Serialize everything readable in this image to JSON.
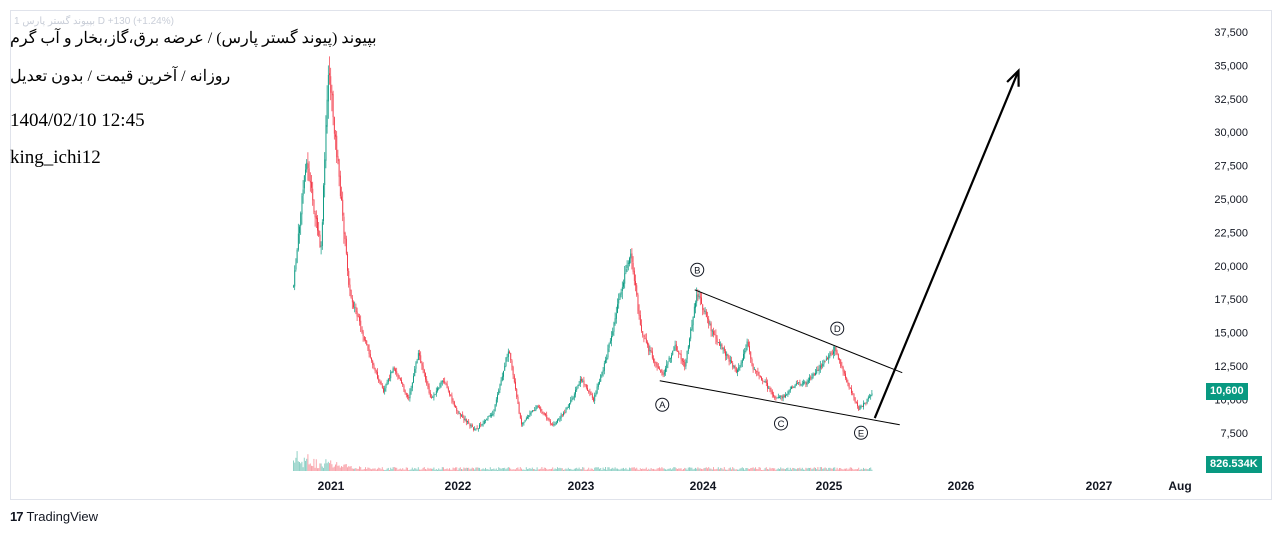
{
  "legend": {
    "title": "بپیوند (پیوند گستر پارس) / عرضه برق،گاز،بخار و آب گرم",
    "interval": "روزانه / آخرین قیمت / بدون تعدیل",
    "datetime": "1404/02/10 12:45",
    "author": "king_ichi12",
    "faint_text": "1 بپیوند گستر پارس D  +130 (+1.24%)"
  },
  "badges": {
    "last_price": "10,600",
    "volume": "826.534K"
  },
  "footer": {
    "logo": "17",
    "brand": "TradingView"
  },
  "colors": {
    "up": "#089981",
    "down": "#f23645",
    "badge": "#089981",
    "drawing": "#000000"
  },
  "chart_data": {
    "type": "candlestick-line",
    "y_axis_ticks": [
      37500,
      35000,
      32500,
      30000,
      27500,
      25000,
      22500,
      20000,
      17500,
      15000,
      12500,
      10000,
      7500
    ],
    "y_axis_labels": [
      "37,500",
      "35,000",
      "32,500",
      "30,000",
      "27,500",
      "25,000",
      "22,500",
      "20,000",
      "17,500",
      "15,000",
      "12,500",
      "10,000",
      "7,500"
    ],
    "x_axis_labels": [
      "2021",
      "2022",
      "2023",
      "2024",
      "2025",
      "2026",
      "2027",
      "Aug"
    ],
    "price_path": [
      {
        "date": "2020.70",
        "price": 18500
      },
      {
        "date": "2020.80",
        "price": 28000
      },
      {
        "date": "2020.92",
        "price": 21000
      },
      {
        "date": "2020.98",
        "price": 35000
      },
      {
        "date": "2021.05",
        "price": 28000
      },
      {
        "date": "2021.15",
        "price": 18000
      },
      {
        "date": "2021.30",
        "price": 13500
      },
      {
        "date": "2021.42",
        "price": 10500
      },
      {
        "date": "2021.50",
        "price": 12500
      },
      {
        "date": "2021.62",
        "price": 10000
      },
      {
        "date": "2021.70",
        "price": 13500
      },
      {
        "date": "2021.80",
        "price": 10000
      },
      {
        "date": "2021.90",
        "price": 11500
      },
      {
        "date": "2022.00",
        "price": 9200
      },
      {
        "date": "2022.15",
        "price": 7700
      },
      {
        "date": "2022.30",
        "price": 9000
      },
      {
        "date": "2022.42",
        "price": 13800
      },
      {
        "date": "2022.52",
        "price": 8200
      },
      {
        "date": "2022.65",
        "price": 9500
      },
      {
        "date": "2022.78",
        "price": 8000
      },
      {
        "date": "2022.90",
        "price": 9500
      },
      {
        "date": "2023.00",
        "price": 11500
      },
      {
        "date": "2023.10",
        "price": 10000
      },
      {
        "date": "2023.20",
        "price": 13000
      },
      {
        "date": "2023.33",
        "price": 18500
      },
      {
        "date": "2023.40",
        "price": 21000
      },
      {
        "date": "2023.48",
        "price": 15000
      },
      {
        "date": "2023.58",
        "price": 13000
      },
      {
        "date": "2023.65",
        "price": 11800
      },
      {
        "date": "2023.75",
        "price": 14000
      },
      {
        "date": "2023.83",
        "price": 12500
      },
      {
        "date": "2023.93",
        "price": 18000
      },
      {
        "date": "2024.05",
        "price": 15000
      },
      {
        "date": "2024.15",
        "price": 13500
      },
      {
        "date": "2024.25",
        "price": 12000
      },
      {
        "date": "2024.33",
        "price": 14200
      },
      {
        "date": "2024.38",
        "price": 12200
      },
      {
        "date": "2024.47",
        "price": 11300
      },
      {
        "date": "2024.55",
        "price": 10000
      },
      {
        "date": "2024.62",
        "price": 10200
      },
      {
        "date": "2024.72",
        "price": 11200
      },
      {
        "date": "2024.80",
        "price": 11200
      },
      {
        "date": "2024.92",
        "price": 12500
      },
      {
        "date": "2025.03",
        "price": 13800
      },
      {
        "date": "2025.12",
        "price": 11500
      },
      {
        "date": "2025.22",
        "price": 9300
      },
      {
        "date": "2025.28",
        "price": 9800
      },
      {
        "date": "2025.33",
        "price": 10600
      }
    ],
    "wave_labels": [
      {
        "label": "A",
        "date": "2023.65",
        "price": 9600
      },
      {
        "label": "B",
        "date": "2023.93",
        "price": 19700
      },
      {
        "label": "C",
        "date": "2024.60",
        "price": 8200
      },
      {
        "label": "D",
        "date": "2025.05",
        "price": 15300
      },
      {
        "label": "E",
        "date": "2025.24",
        "price": 7500
      }
    ],
    "trendlines": [
      {
        "from": {
          "date": "2023.63",
          "price": 11400
        },
        "to": {
          "date": "2025.55",
          "price": 8100
        }
      },
      {
        "from": {
          "date": "2023.91",
          "price": 18200
        },
        "to": {
          "date": "2025.57",
          "price": 12000
        }
      }
    ],
    "projection_arrow": {
      "from": {
        "date": "2025.35",
        "price": 8600
      },
      "to": {
        "date": "2026.50",
        "price": 34600
      }
    }
  }
}
